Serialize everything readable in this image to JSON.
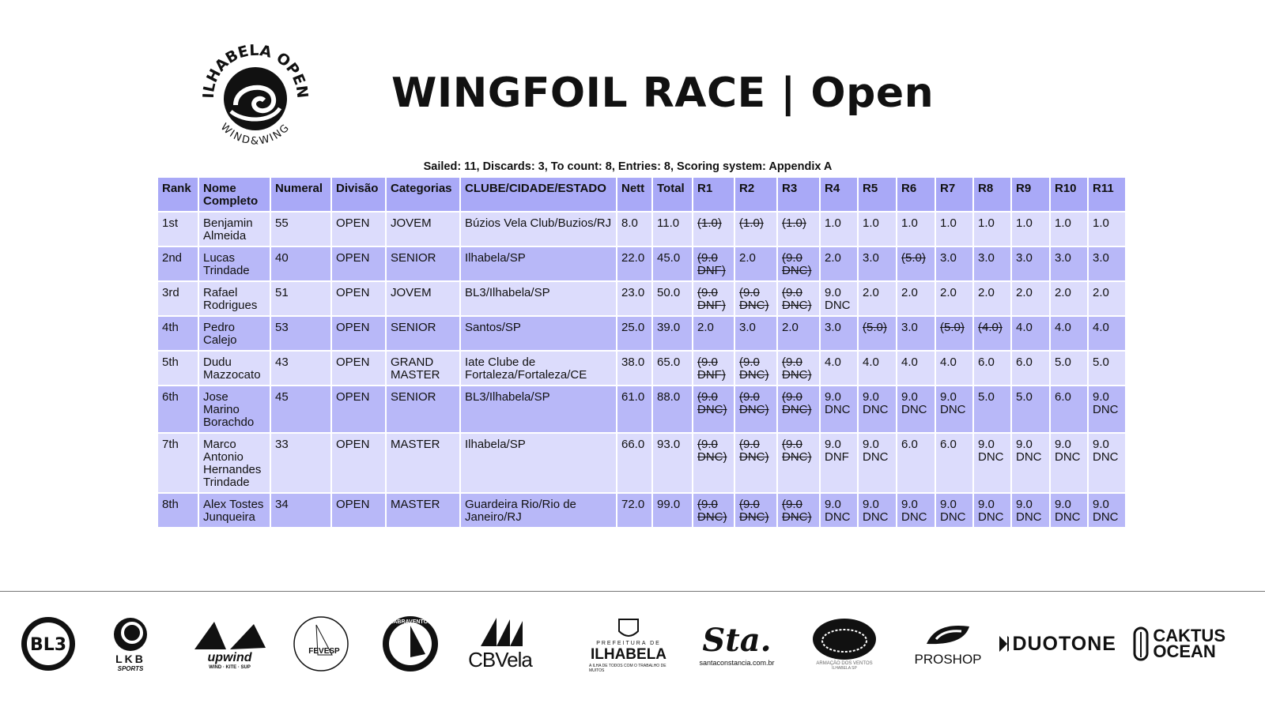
{
  "event_logo": {
    "text_top": "ILHABELA OPEN",
    "text_bottom": "WIND&WING"
  },
  "title": "WINGFOIL RACE | Open",
  "summary": "Sailed: 11, Discards: 3, To count: 8, Entries: 8, Scoring system: Appendix A",
  "colors": {
    "header": "#a9a9f7",
    "row_light": "#dcdcfc",
    "row_dark": "#b8b8f8"
  },
  "table": {
    "headers": [
      "Rank",
      "Nome Completo",
      "Numeral",
      "Divisão",
      "Categorias",
      "CLUBE/CIDADE/ESTADO",
      "Nett",
      "Total",
      "R1",
      "R2",
      "R3",
      "R4",
      "R5",
      "R6",
      "R7",
      "R8",
      "R9",
      "R10",
      "R11"
    ],
    "rows": [
      {
        "rank": "1st",
        "name": "Benjamin Almeida",
        "numeral": "55",
        "division": "OPEN",
        "category": "JOVEM",
        "club": "Búzios Vela Club/Buzios/RJ",
        "nett": "8.0",
        "total": "11.0",
        "races": [
          {
            "v": "(1.0)",
            "d": true
          },
          {
            "v": "(1.0)",
            "d": true
          },
          {
            "v": "(1.0)",
            "d": true
          },
          {
            "v": "1.0"
          },
          {
            "v": "1.0"
          },
          {
            "v": "1.0"
          },
          {
            "v": "1.0"
          },
          {
            "v": "1.0"
          },
          {
            "v": "1.0"
          },
          {
            "v": "1.0"
          },
          {
            "v": "1.0"
          }
        ]
      },
      {
        "rank": "2nd",
        "name": "Lucas Trindade",
        "numeral": "40",
        "division": "OPEN",
        "category": "SENIOR",
        "club": "Ilhabela/SP",
        "nett": "22.0",
        "total": "45.0",
        "races": [
          {
            "v": "(9.0 DNF)",
            "d": true
          },
          {
            "v": "2.0"
          },
          {
            "v": "(9.0 DNC)",
            "d": true
          },
          {
            "v": "2.0"
          },
          {
            "v": "3.0"
          },
          {
            "v": "(5.0)",
            "d": true
          },
          {
            "v": "3.0"
          },
          {
            "v": "3.0"
          },
          {
            "v": "3.0"
          },
          {
            "v": "3.0"
          },
          {
            "v": "3.0"
          }
        ]
      },
      {
        "rank": "3rd",
        "name": "Rafael Rodrigues",
        "numeral": "51",
        "division": "OPEN",
        "category": "JOVEM",
        "club": "BL3/Ilhabela/SP",
        "nett": "23.0",
        "total": "50.0",
        "races": [
          {
            "v": "(9.0 DNF)",
            "d": true
          },
          {
            "v": "(9.0 DNC)",
            "d": true
          },
          {
            "v": "(9.0 DNC)",
            "d": true
          },
          {
            "v": "9.0 DNC"
          },
          {
            "v": "2.0"
          },
          {
            "v": "2.0"
          },
          {
            "v": "2.0"
          },
          {
            "v": "2.0"
          },
          {
            "v": "2.0"
          },
          {
            "v": "2.0"
          },
          {
            "v": "2.0"
          }
        ]
      },
      {
        "rank": "4th",
        "name": "Pedro Calejo",
        "numeral": "53",
        "division": "OPEN",
        "category": "SENIOR",
        "club": "Santos/SP",
        "nett": "25.0",
        "total": "39.0",
        "races": [
          {
            "v": "2.0"
          },
          {
            "v": "3.0"
          },
          {
            "v": "2.0"
          },
          {
            "v": "3.0"
          },
          {
            "v": "(5.0)",
            "d": true
          },
          {
            "v": "3.0"
          },
          {
            "v": "(5.0)",
            "d": true
          },
          {
            "v": "(4.0)",
            "d": true
          },
          {
            "v": "4.0"
          },
          {
            "v": "4.0"
          },
          {
            "v": "4.0"
          }
        ]
      },
      {
        "rank": "5th",
        "name": "Dudu Mazzocato",
        "numeral": "43",
        "division": "OPEN",
        "category": "GRAND MASTER",
        "club": "Iate Clube de Fortaleza/Fortaleza/CE",
        "nett": "38.0",
        "total": "65.0",
        "races": [
          {
            "v": "(9.0 DNF)",
            "d": true
          },
          {
            "v": "(9.0 DNC)",
            "d": true
          },
          {
            "v": "(9.0 DNC)",
            "d": true
          },
          {
            "v": "4.0"
          },
          {
            "v": "4.0"
          },
          {
            "v": "4.0"
          },
          {
            "v": "4.0"
          },
          {
            "v": "6.0"
          },
          {
            "v": "6.0"
          },
          {
            "v": "5.0"
          },
          {
            "v": "5.0"
          }
        ]
      },
      {
        "rank": "6th",
        "name": "Jose Marino Borachdo",
        "numeral": "45",
        "division": "OPEN",
        "category": "SENIOR",
        "club": "BL3/Ilhabela/SP",
        "nett": "61.0",
        "total": "88.0",
        "races": [
          {
            "v": "(9.0 DNC)",
            "d": true
          },
          {
            "v": "(9.0 DNC)",
            "d": true
          },
          {
            "v": "(9.0 DNC)",
            "d": true
          },
          {
            "v": "9.0 DNC"
          },
          {
            "v": "9.0 DNC"
          },
          {
            "v": "9.0 DNC"
          },
          {
            "v": "9.0 DNC"
          },
          {
            "v": "5.0"
          },
          {
            "v": "5.0"
          },
          {
            "v": "6.0"
          },
          {
            "v": "9.0 DNC"
          }
        ]
      },
      {
        "rank": "7th",
        "name": "Marco Antonio Hernandes Trindade",
        "numeral": "33",
        "division": "OPEN",
        "category": "MASTER",
        "club": "Ilhabela/SP",
        "nett": "66.0",
        "total": "93.0",
        "races": [
          {
            "v": "(9.0 DNC)",
            "d": true
          },
          {
            "v": "(9.0 DNC)",
            "d": true
          },
          {
            "v": "(9.0 DNC)",
            "d": true
          },
          {
            "v": "9.0 DNF"
          },
          {
            "v": "9.0 DNC"
          },
          {
            "v": "6.0"
          },
          {
            "v": "6.0"
          },
          {
            "v": "9.0 DNC"
          },
          {
            "v": "9.0 DNC"
          },
          {
            "v": "9.0 DNC"
          },
          {
            "v": "9.0 DNC"
          }
        ]
      },
      {
        "rank": "8th",
        "name": "Alex Tostes Junqueira",
        "numeral": "34",
        "division": "OPEN",
        "category": "MASTER",
        "club": "Guardeira Rio/Rio de Janeiro/RJ",
        "nett": "72.0",
        "total": "99.0",
        "races": [
          {
            "v": "(9.0 DNC)",
            "d": true
          },
          {
            "v": "(9.0 DNC)",
            "d": true
          },
          {
            "v": "(9.0 DNC)",
            "d": true
          },
          {
            "v": "9.0 DNC"
          },
          {
            "v": "9.0 DNC"
          },
          {
            "v": "9.0 DNC"
          },
          {
            "v": "9.0 DNC"
          },
          {
            "v": "9.0 DNC"
          },
          {
            "v": "9.0 DNC"
          },
          {
            "v": "9.0 DNC"
          },
          {
            "v": "9.0 DNC"
          }
        ]
      }
    ]
  },
  "sponsors": [
    {
      "id": "bl3",
      "text": "BL3"
    },
    {
      "id": "lkb",
      "text": "LKB",
      "sub": "SPORTS"
    },
    {
      "id": "upwind",
      "text": "upwind",
      "sub": "WIND · KITE · SUP"
    },
    {
      "id": "fevesp",
      "text": "FEVESP"
    },
    {
      "id": "aabraventos",
      "text": "AABRAVENTOS"
    },
    {
      "id": "cbvela",
      "text": "CBVela"
    },
    {
      "id": "ilhabela",
      "text": "ILHABELA",
      "pre": "PREFEITURA DE",
      "sub": "A ILHA DE TODOS COM O TRABALHO DE MUITOS"
    },
    {
      "id": "santaconstancia",
      "text": "Sta.",
      "sub": "santaconstancia.com.br"
    },
    {
      "id": "armacao",
      "text": "ARMAÇÃO DOS VENTOS",
      "sub": "ILHABELA SP"
    },
    {
      "id": "proshop",
      "text": "PROSHOP"
    },
    {
      "id": "duotone",
      "text": "DUOTONE"
    },
    {
      "id": "caktus",
      "text": "CAKTUS",
      "sub": "OCEAN"
    }
  ]
}
